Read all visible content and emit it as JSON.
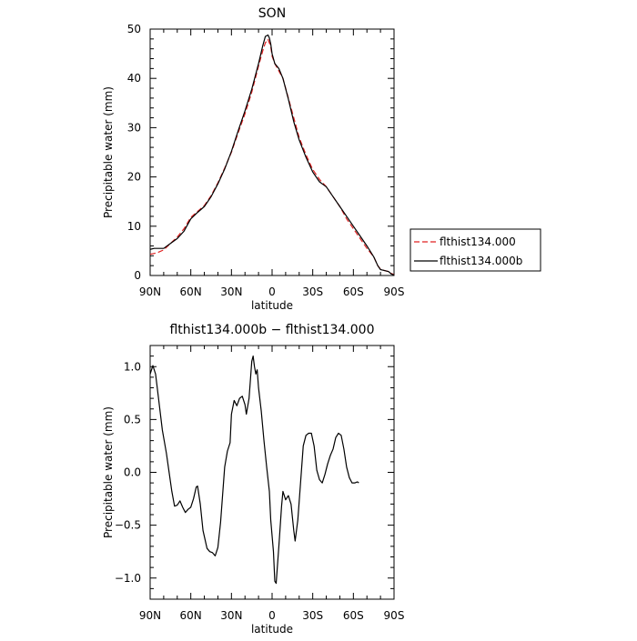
{
  "chart_data": [
    {
      "type": "line",
      "title": "SON",
      "xlabel": "latitude",
      "ylabel": "Precipitable water  (mm)",
      "xlim": [
        90,
        -90
      ],
      "ylim": [
        0,
        50
      ],
      "x_tick_values": [
        90,
        60,
        30,
        0,
        -30,
        -60,
        -90
      ],
      "x_tick_labels": [
        "90N",
        "60N",
        "30N",
        "0",
        "30S",
        "60S",
        "90S"
      ],
      "y_tick_values": [
        0,
        10,
        20,
        30,
        40,
        50
      ],
      "y_tick_labels": [
        "0",
        "10",
        "20",
        "30",
        "40",
        "50"
      ],
      "legend_position": "right",
      "series": [
        {
          "name": "flthist134.000",
          "color": "#e02020",
          "dash": "dashed",
          "points": [
            [
              90,
              4.3
            ],
            [
              85,
              4.6
            ],
            [
              80,
              5.2
            ],
            [
              75,
              6.5
            ],
            [
              70,
              7.8
            ],
            [
              65,
              9.5
            ],
            [
              60,
              11.8
            ],
            [
              55,
              13.0
            ],
            [
              50,
              14.2
            ],
            [
              45,
              16.2
            ],
            [
              40,
              18.8
            ],
            [
              35,
              21.8
            ],
            [
              30,
              25.0
            ],
            [
              25,
              29.0
            ],
            [
              20,
              32.8
            ],
            [
              15,
              37.2
            ],
            [
              10,
              42.5
            ],
            [
              7,
              45.5
            ],
            [
              5,
              47.2
            ],
            [
              3,
              47.9
            ],
            [
              1,
              46.5
            ],
            [
              0,
              44.5
            ],
            [
              -2,
              43.0
            ],
            [
              -5,
              41.5
            ],
            [
              -8,
              40.0
            ],
            [
              -12,
              36.0
            ],
            [
              -16,
              32.0
            ],
            [
              -20,
              28.0
            ],
            [
              -25,
              24.5
            ],
            [
              -30,
              21.5
            ],
            [
              -35,
              19.5
            ],
            [
              -40,
              18.0
            ],
            [
              -45,
              16.0
            ],
            [
              -50,
              14.0
            ],
            [
              -55,
              11.5
            ],
            [
              -60,
              9.5
            ],
            [
              -65,
              7.5
            ],
            [
              -70,
              5.5
            ],
            [
              -75,
              3.8
            ],
            [
              -78,
              2.0
            ],
            [
              -80,
              1.3
            ],
            [
              -83,
              1.0
            ],
            [
              -86,
              0.8
            ],
            [
              -88,
              0.4
            ],
            [
              -90,
              0.2
            ]
          ]
        },
        {
          "name": "flthist134.000b",
          "color": "#000000",
          "dash": "solid",
          "points": [
            [
              90,
              5.3
            ],
            [
              87,
              5.5
            ],
            [
              85,
              5.5
            ],
            [
              82,
              5.5
            ],
            [
              80,
              5.5
            ],
            [
              75,
              6.5
            ],
            [
              70,
              7.5
            ],
            [
              65,
              9.0
            ],
            [
              60,
              11.5
            ],
            [
              55,
              12.8
            ],
            [
              50,
              14.0
            ],
            [
              45,
              16.0
            ],
            [
              40,
              18.6
            ],
            [
              35,
              21.6
            ],
            [
              30,
              25.2
            ],
            [
              25,
              29.4
            ],
            [
              20,
              33.4
            ],
            [
              15,
              37.8
            ],
            [
              10,
              43.0
            ],
            [
              7,
              46.5
            ],
            [
              5,
              48.5
            ],
            [
              3,
              48.8
            ],
            [
              2,
              48.2
            ],
            [
              1,
              47.0
            ],
            [
              0,
              45.0
            ],
            [
              -2,
              43.0
            ],
            [
              -5,
              42.0
            ],
            [
              -8,
              40.0
            ],
            [
              -12,
              35.8
            ],
            [
              -16,
              31.2
            ],
            [
              -20,
              27.5
            ],
            [
              -25,
              24.0
            ],
            [
              -30,
              21.0
            ],
            [
              -35,
              19.0
            ],
            [
              -40,
              18.0
            ],
            [
              -45,
              16.0
            ],
            [
              -50,
              14.0
            ],
            [
              -55,
              12.0
            ],
            [
              -60,
              10.0
            ],
            [
              -65,
              8.0
            ],
            [
              -70,
              6.0
            ],
            [
              -75,
              3.8
            ],
            [
              -78,
              2.0
            ],
            [
              -80,
              1.2
            ],
            [
              -83,
              1.0
            ],
            [
              -86,
              0.8
            ],
            [
              -88,
              0.3
            ],
            [
              -90,
              0.1
            ]
          ]
        }
      ]
    },
    {
      "type": "line",
      "title": "flthist134.000b − flthist134.000",
      "xlabel": "latitude",
      "ylabel": "Precipitable water  (mm)",
      "xlim": [
        90,
        -90
      ],
      "ylim": [
        -1.2,
        1.2
      ],
      "x_tick_values": [
        90,
        60,
        30,
        0,
        -30,
        -60,
        -90
      ],
      "x_tick_labels": [
        "90N",
        "60N",
        "30N",
        "0",
        "30S",
        "60S",
        "90S"
      ],
      "y_tick_values": [
        1.0,
        0.5,
        0.0,
        -0.5,
        -1.0
      ],
      "y_tick_labels": [
        "1.0",
        "0.5",
        "0.0",
        "−0.5",
        "−1.0"
      ],
      "series": [
        {
          "color": "#000000",
          "dash": "solid",
          "points": [
            [
              90,
              0.93
            ],
            [
              88,
              1.01
            ],
            [
              86,
              0.93
            ],
            [
              84,
              0.72
            ],
            [
              81,
              0.4
            ],
            [
              78,
              0.18
            ],
            [
              76,
              0.0
            ],
            [
              74,
              -0.18
            ],
            [
              72,
              -0.32
            ],
            [
              70,
              -0.31
            ],
            [
              68,
              -0.27
            ],
            [
              66,
              -0.33
            ],
            [
              64,
              -0.38
            ],
            [
              62,
              -0.35
            ],
            [
              60,
              -0.33
            ],
            [
              58,
              -0.25
            ],
            [
              56,
              -0.14
            ],
            [
              55,
              -0.13
            ],
            [
              53,
              -0.3
            ],
            [
              51,
              -0.55
            ],
            [
              48,
              -0.72
            ],
            [
              46,
              -0.75
            ],
            [
              44,
              -0.76
            ],
            [
              42,
              -0.79
            ],
            [
              40,
              -0.71
            ],
            [
              38,
              -0.47
            ],
            [
              35,
              0.05
            ],
            [
              33,
              0.2
            ],
            [
              31,
              0.28
            ],
            [
              30,
              0.55
            ],
            [
              28,
              0.68
            ],
            [
              26,
              0.63
            ],
            [
              24,
              0.7
            ],
            [
              22,
              0.72
            ],
            [
              20,
              0.64
            ],
            [
              19,
              0.55
            ],
            [
              17,
              0.7
            ],
            [
              15,
              1.05
            ],
            [
              14,
              1.1
            ],
            [
              13,
              1.0
            ],
            [
              12,
              0.93
            ],
            [
              11,
              0.97
            ],
            [
              10,
              0.8
            ],
            [
              8,
              0.58
            ],
            [
              6,
              0.3
            ],
            [
              4,
              0.05
            ],
            [
              2,
              -0.18
            ],
            [
              1,
              -0.45
            ],
            [
              -1,
              -0.75
            ],
            [
              -2,
              -1.03
            ],
            [
              -3,
              -1.05
            ],
            [
              -5,
              -0.7
            ],
            [
              -7,
              -0.32
            ],
            [
              -8,
              -0.18
            ],
            [
              -10,
              -0.26
            ],
            [
              -12,
              -0.22
            ],
            [
              -14,
              -0.3
            ],
            [
              -16,
              -0.55
            ],
            [
              -17,
              -0.65
            ],
            [
              -19,
              -0.45
            ],
            [
              -21,
              -0.1
            ],
            [
              -23,
              0.25
            ],
            [
              -25,
              0.35
            ],
            [
              -27,
              0.37
            ],
            [
              -29,
              0.37
            ],
            [
              -31,
              0.25
            ],
            [
              -33,
              0.02
            ],
            [
              -35,
              -0.07
            ],
            [
              -37,
              -0.1
            ],
            [
              -39,
              -0.02
            ],
            [
              -41,
              0.08
            ],
            [
              -43,
              0.16
            ],
            [
              -45,
              0.22
            ],
            [
              -47,
              0.33
            ],
            [
              -49,
              0.37
            ],
            [
              -51,
              0.35
            ],
            [
              -53,
              0.22
            ],
            [
              -55,
              0.05
            ],
            [
              -57,
              -0.05
            ],
            [
              -59,
              -0.1
            ],
            [
              -61,
              -0.1
            ],
            [
              -63,
              -0.09
            ],
            [
              -64,
              -0.1
            ]
          ]
        }
      ]
    }
  ]
}
